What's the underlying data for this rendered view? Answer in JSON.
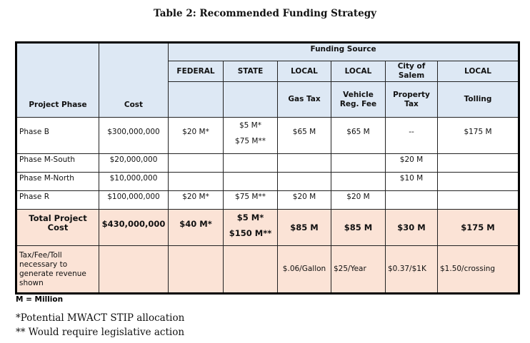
{
  "title": "Table 2: Recommended Funding Strategy",
  "header": {
    "project_phase": "Project Phase",
    "cost": "Cost",
    "funding_source": "Funding Source",
    "sources": [
      {
        "top": "FEDERAL",
        "sub": ""
      },
      {
        "top": "STATE",
        "sub": ""
      },
      {
        "top": "LOCAL",
        "sub": "Gas Tax"
      },
      {
        "top": "LOCAL",
        "sub": "Vehicle Reg. Fee"
      },
      {
        "top": "City of Salem",
        "sub": "Property Tax"
      },
      {
        "top": "LOCAL",
        "sub": "Tolling"
      }
    ]
  },
  "rows": [
    {
      "phase": "Phase B",
      "cost": "$300,000,000",
      "federal": "$20 M*",
      "state": [
        "$5 M*",
        "$75 M**"
      ],
      "gas": "$65 M",
      "vehicle": "$65 M",
      "property": "--",
      "tolling": "$175 M"
    },
    {
      "phase": "Phase M-South",
      "cost": "$20,000,000",
      "federal": "",
      "state": [
        ""
      ],
      "gas": "",
      "vehicle": "",
      "property": "$20 M",
      "tolling": ""
    },
    {
      "phase": "Phase M-North",
      "cost": "$10,000,000",
      "federal": "",
      "state": [
        ""
      ],
      "gas": "",
      "vehicle": "",
      "property": "$10 M",
      "tolling": ""
    },
    {
      "phase": "Phase R",
      "cost": "$100,000,000",
      "federal": "$20 M*",
      "state": [
        "$75 M**"
      ],
      "gas": "$20 M",
      "vehicle": "$20 M",
      "property": "",
      "tolling": ""
    }
  ],
  "total": {
    "phase": "Total Project Cost",
    "cost": "$430,000,000",
    "federal": "$40 M*",
    "state": [
      "$5 M*",
      "$150 M**"
    ],
    "gas": "$85 M",
    "vehicle": "$85 M",
    "property": "$30 M",
    "tolling": "$175 M"
  },
  "tax_row": {
    "label": "Tax/Fee/Toll necessary to generate revenue shown",
    "gas": "$.06/Gallon",
    "vehicle": "$25/Year",
    "property": "$0.37/$1K",
    "tolling": "$1.50/crossing"
  },
  "notes": {
    "million": "M = Million",
    "footnote1": "*Potential MWACT STIP allocation",
    "footnote2": "** Would require legislative action"
  }
}
